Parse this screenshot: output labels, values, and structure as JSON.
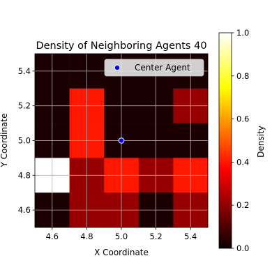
{
  "chart_data": {
    "type": "heatmap",
    "title": "Density of Neighboring Agents 40",
    "xlabel": "X Coordinate",
    "ylabel": "Y Coordinate",
    "xlim": [
      4.5,
      5.5
    ],
    "ylim": [
      4.5,
      5.5
    ],
    "x_ticks": [
      "4.6",
      "4.8",
      "5.0",
      "5.2",
      "5.4"
    ],
    "y_ticks": [
      "4.6",
      "4.8",
      "5.0",
      "5.2",
      "5.4"
    ],
    "grid": true,
    "x_edges": [
      4.5,
      4.7,
      4.9,
      5.1,
      5.3,
      5.5
    ],
    "y_edges": [
      4.5,
      4.7,
      4.9,
      5.1,
      5.3,
      5.5
    ],
    "density_rows_top_to_bottom": [
      [
        0.0,
        0.0,
        0.0,
        0.0,
        0.0
      ],
      [
        0.0,
        0.4,
        0.0,
        0.0,
        0.2
      ],
      [
        0.0,
        0.4,
        0.0,
        0.0,
        0.0
      ],
      [
        1.0,
        0.2,
        0.4,
        0.2,
        0.4
      ],
      [
        0.0,
        0.2,
        0.2,
        0.0,
        0.2
      ]
    ],
    "colormap": "hot",
    "colorbar": {
      "label": "Density",
      "range": [
        0.0,
        1.0
      ],
      "ticks": [
        "0.0",
        "0.2",
        "0.4",
        "0.6",
        "0.8",
        "1.0"
      ]
    },
    "center_agent": {
      "label": "Center Agent",
      "x": 5.0,
      "y": 5.0,
      "marker_color": "#0000ff"
    },
    "legend_position": "top-right"
  }
}
